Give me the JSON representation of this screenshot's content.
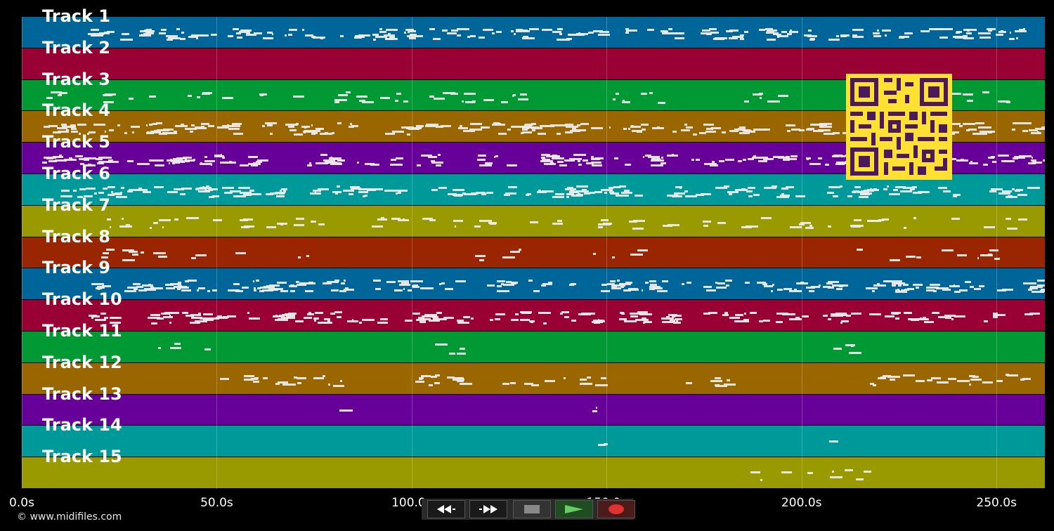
{
  "timeline": {
    "max_seconds": 262.4,
    "axis_ticks": [
      {
        "value": 0,
        "label": "0.0s"
      },
      {
        "value": 50,
        "label": "50.0s"
      },
      {
        "value": 100,
        "label": "100.0s"
      },
      {
        "value": 150,
        "label": "150.0s"
      },
      {
        "value": 200,
        "label": "200.0s"
      },
      {
        "value": 250,
        "label": "250.0s"
      }
    ],
    "tracks": [
      {
        "name": "Track 1",
        "color": "#006699"
      },
      {
        "name": "Track 2",
        "color": "#990033"
      },
      {
        "name": "Track 3",
        "color": "#009933"
      },
      {
        "name": "Track 4",
        "color": "#996600"
      },
      {
        "name": "Track 5",
        "color": "#660099"
      },
      {
        "name": "Track 6",
        "color": "#009999"
      },
      {
        "name": "Track 7",
        "color": "#999900"
      },
      {
        "name": "Track 8",
        "color": "#992600"
      },
      {
        "name": "Track 9",
        "color": "#006699"
      },
      {
        "name": "Track 10",
        "color": "#990033"
      },
      {
        "name": "Track 11",
        "color": "#009933"
      },
      {
        "name": "Track 12",
        "color": "#996600"
      },
      {
        "name": "Track 13",
        "color": "#660099"
      },
      {
        "name": "Track 14",
        "color": "#009999"
      },
      {
        "name": "Track 15",
        "color": "#999900"
      }
    ]
  },
  "transport": {
    "buttons": [
      {
        "id": "rewind",
        "icon": "rewind-icon"
      },
      {
        "id": "fast-forward",
        "icon": "fast-forward-icon"
      },
      {
        "id": "stop",
        "icon": "stop-icon"
      },
      {
        "id": "play",
        "icon": "play-icon",
        "active": true
      },
      {
        "id": "record",
        "icon": "record-icon"
      }
    ]
  },
  "footer": {
    "copyright": "© www.midifiles.com"
  },
  "overlay": {
    "qr_icon": "qr-code-icon"
  }
}
